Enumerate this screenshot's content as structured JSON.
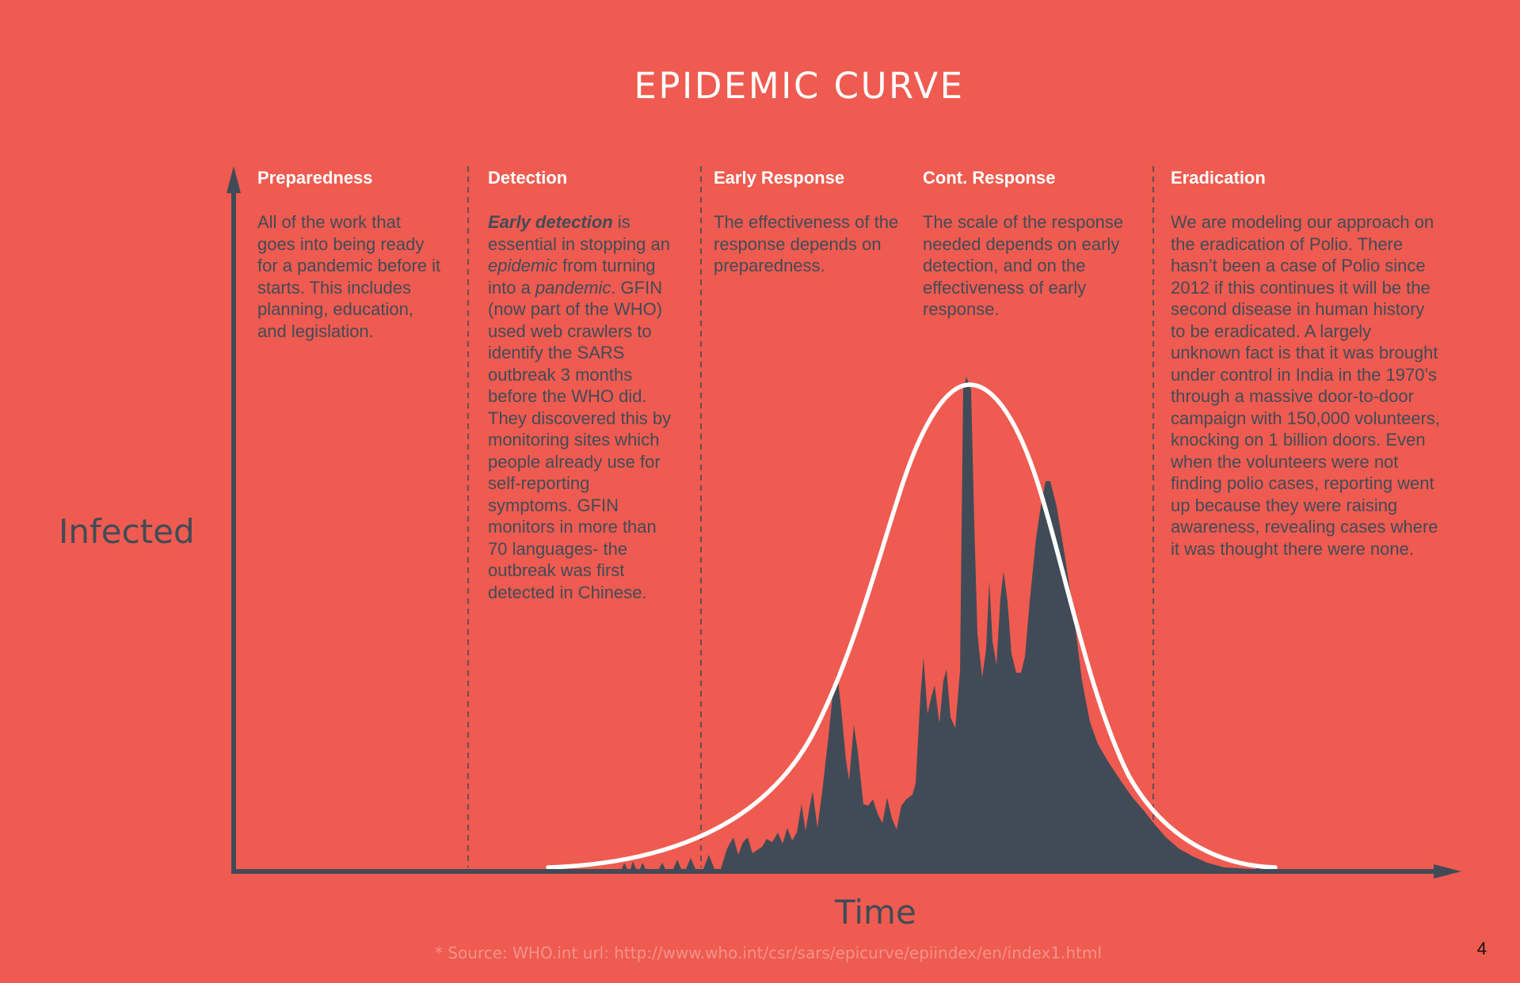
{
  "title": "EPIDEMIC CURVE",
  "axes": {
    "y_label": "Infected",
    "x_label": "Time"
  },
  "phases": [
    {
      "heading": "Preparedness",
      "lines": [
        "All of the work that",
        "goes into being ready",
        "for a pandemic before it",
        "starts. This includes",
        "planning, education,",
        "and legislation."
      ]
    },
    {
      "heading": "Detection",
      "lines": [
        "<b>Early detection</b> is",
        "essential in stopping an",
        "<em>epidemic</em> from turning",
        "into a <em>pandemic</em>. GFIN",
        "(now part of the WHO)",
        "used web crawlers to",
        "identify the SARS",
        "outbreak 3 months",
        "before the WHO did.",
        "They discovered this by",
        "monitoring sites which",
        "people already use for",
        "self-reporting",
        "symptoms. GFIN",
        "monitors in more than",
        "70 languages- the",
        "outbreak was first",
        "detected in Chinese."
      ]
    },
    {
      "heading": "Early Response",
      "lines": [
        "The effectiveness of the",
        "response depends on",
        "preparedness."
      ]
    },
    {
      "heading": "Cont. Response",
      "lines": [
        "The scale of the response",
        "needed depends on early",
        "detection, and on the",
        "effectiveness of early",
        "response."
      ]
    },
    {
      "heading": "Eradication",
      "lines": [
        "We are modeling our approach on",
        "the eradication of Polio. There",
        "hasn’t been a case of Polio since",
        "2012 if this continues it will be the",
        "second disease in human history",
        "to be eradicated. A largely",
        "unknown fact is that it was brought",
        "under control in India in the 1970’s",
        "through a massive door-to-door",
        "campaign with 150,000 volunteers,",
        "knocking on 1 billion doors. Even",
        "when the volunteers were not",
        "finding polio cases, reporting went",
        "up because they were raising",
        "awareness, revealing cases where",
        "it was thought there were none."
      ]
    }
  ],
  "source": "* Source: WHO.int url: http://www.who.int/csr/sars/epicurve/epiindex/en/index1.html",
  "page_number": "4",
  "colors": {
    "background": "#ef5b50",
    "dark": "#414b57",
    "white": "#ffffff"
  }
}
